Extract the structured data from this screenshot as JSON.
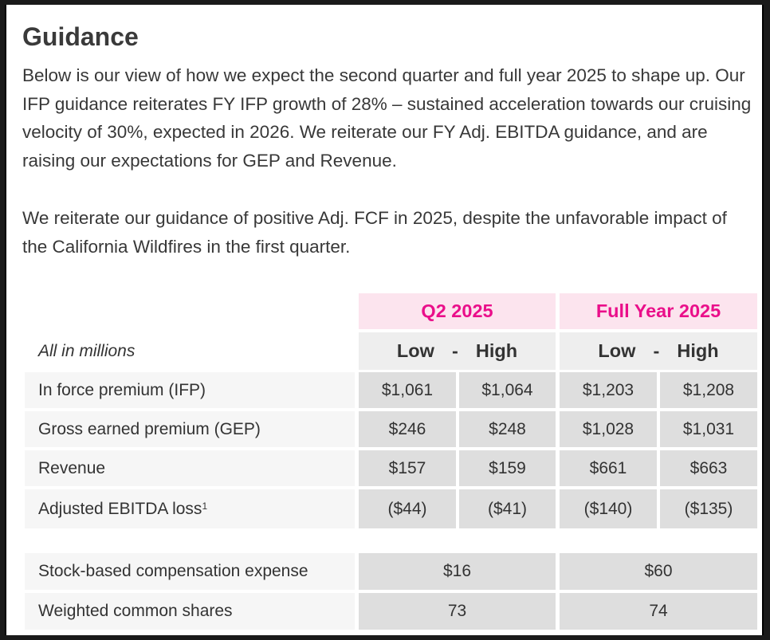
{
  "heading": "Guidance",
  "paragraphs": [
    "Below is our view of how we expect the second quarter and full year 2025 to shape up. Our IFP guidance reiterates FY IFP growth of 28% – sustained acceleration towards our cruising velocity of 30%, expected in 2026. We reiterate our FY Adj. EBITDA guidance, and are raising our expectations for GEP and Revenue.",
    "We reiterate our guidance of positive Adj. FCF in 2025, despite the unfavorable impact of the California Wildfires in the first quarter."
  ],
  "table": {
    "periods": [
      "Q2 2025",
      "Full Year 2025"
    ],
    "units_note": "All in millions",
    "range_low": "Low",
    "range_sep": "-",
    "range_high": "High",
    "rows": [
      {
        "label": "In force premium (IFP)",
        "values": [
          "$1,061",
          "$1,064",
          "$1,203",
          "$1,208"
        ]
      },
      {
        "label": "Gross earned premium (GEP)",
        "values": [
          "$246",
          "$248",
          "$1,028",
          "$1,031"
        ]
      },
      {
        "label": "Revenue",
        "values": [
          "$157",
          "$159",
          "$661",
          "$663"
        ]
      },
      {
        "label": "Adjusted EBITDA loss",
        "footnote": "1",
        "values": [
          "($44)",
          "($41)",
          "($140)",
          "($135)"
        ]
      }
    ],
    "extra_rows": [
      {
        "label": "Stock-based compensation expense",
        "values": [
          "$16",
          "$60"
        ]
      },
      {
        "label": "Weighted common shares",
        "values": [
          "73",
          "74"
        ]
      }
    ]
  },
  "colors": {
    "accent_pink": "#ea0f8a",
    "header_bg": "#fce4ee",
    "value_bg": "#dedede",
    "label_bg": "#f6f6f6"
  }
}
